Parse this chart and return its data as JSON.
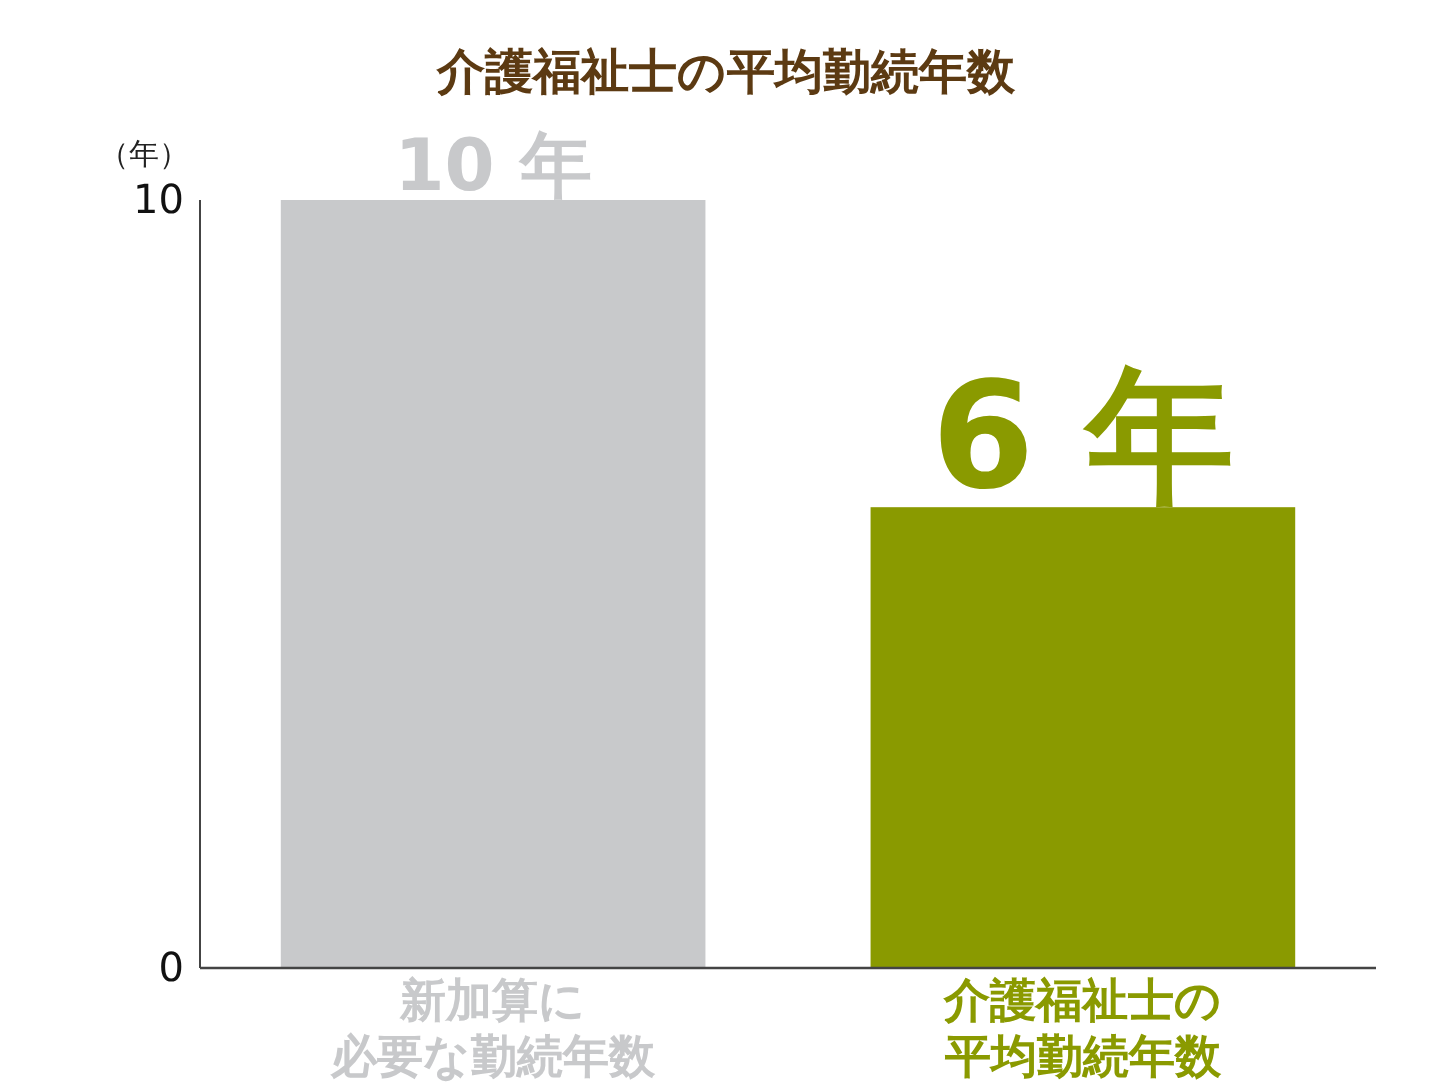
{
  "chart_data": {
    "type": "bar",
    "title": "介護福祉士の平均勤続年数",
    "ylabel": "（年）",
    "categories": [
      "新加算に必要な勤続年数",
      "介護福祉士の平均勤続年数"
    ],
    "values": [
      10,
      6
    ],
    "colors": [
      "#c8c9cb",
      "#8a9a00"
    ],
    "value_labels": [
      "10 年",
      "6 年"
    ],
    "ylim": [
      0,
      10
    ],
    "yticks": [
      0,
      10
    ],
    "grid": false,
    "legend": false
  }
}
